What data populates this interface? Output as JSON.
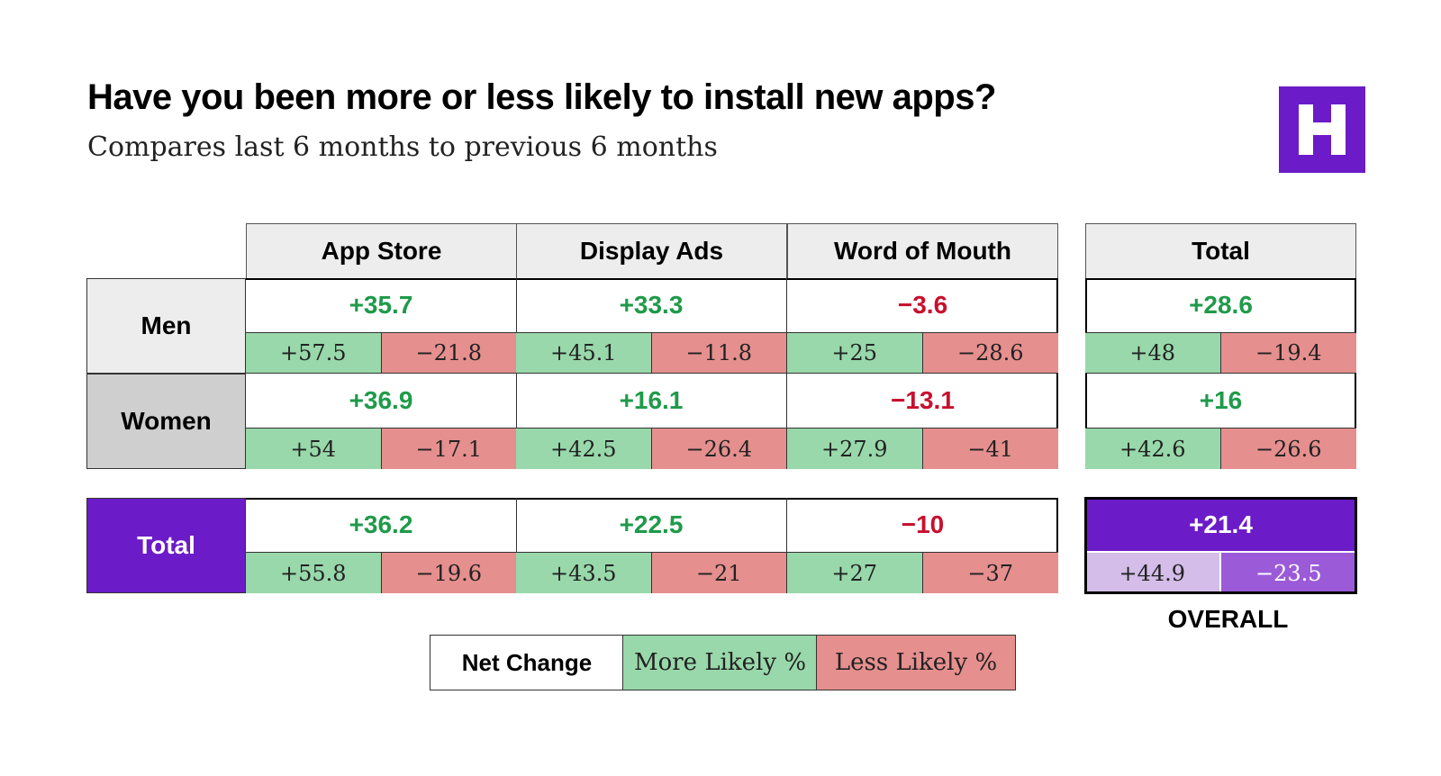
{
  "title": "Have you been more or less likely to install new apps?",
  "subtitle": "Compares last 6 months to previous 6 months",
  "logo": {
    "letter": "H",
    "color": "#6b1bc7"
  },
  "colors": {
    "positive": "#1f9a4a",
    "negative": "#c8102e",
    "more_fill": "#98d8aa",
    "less_fill": "#e58f8e",
    "accent": "#6b1bc7"
  },
  "overall_label": "OVERALL",
  "legend": {
    "net": "Net Change",
    "more": "More Likely %",
    "less": "Less Likely %"
  },
  "chart_data": {
    "type": "table",
    "title": "Have you been more or less likely to install new apps?",
    "subtitle": "Compares last 6 months to previous 6 months",
    "columns": [
      "App Store",
      "Display Ads",
      "Word of Mouth",
      "Total"
    ],
    "rows": [
      {
        "label": "Men",
        "cells": [
          {
            "net": "+35.7",
            "more": "+57.5",
            "less": "−21.8"
          },
          {
            "net": "+33.3",
            "more": "+45.1",
            "less": "−11.8"
          },
          {
            "net": "−3.6",
            "more": "+25",
            "less": "−28.6"
          },
          {
            "net": "+28.6",
            "more": "+48",
            "less": "−19.4"
          }
        ]
      },
      {
        "label": "Women",
        "cells": [
          {
            "net": "+36.9",
            "more": "+54",
            "less": "−17.1"
          },
          {
            "net": "+16.1",
            "more": "+42.5",
            "less": "−26.4"
          },
          {
            "net": "−13.1",
            "more": "+27.9",
            "less": "−41"
          },
          {
            "net": "+16",
            "more": "+42.6",
            "less": "−26.6"
          }
        ]
      },
      {
        "label": "Total",
        "cells": [
          {
            "net": "+36.2",
            "more": "+55.8",
            "less": "−19.6"
          },
          {
            "net": "+22.5",
            "more": "+43.5",
            "less": "−21"
          },
          {
            "net": "−10",
            "more": "+27",
            "less": "−37"
          },
          {
            "net": "+21.4",
            "more": "+44.9",
            "less": "−23.5"
          }
        ]
      }
    ]
  }
}
